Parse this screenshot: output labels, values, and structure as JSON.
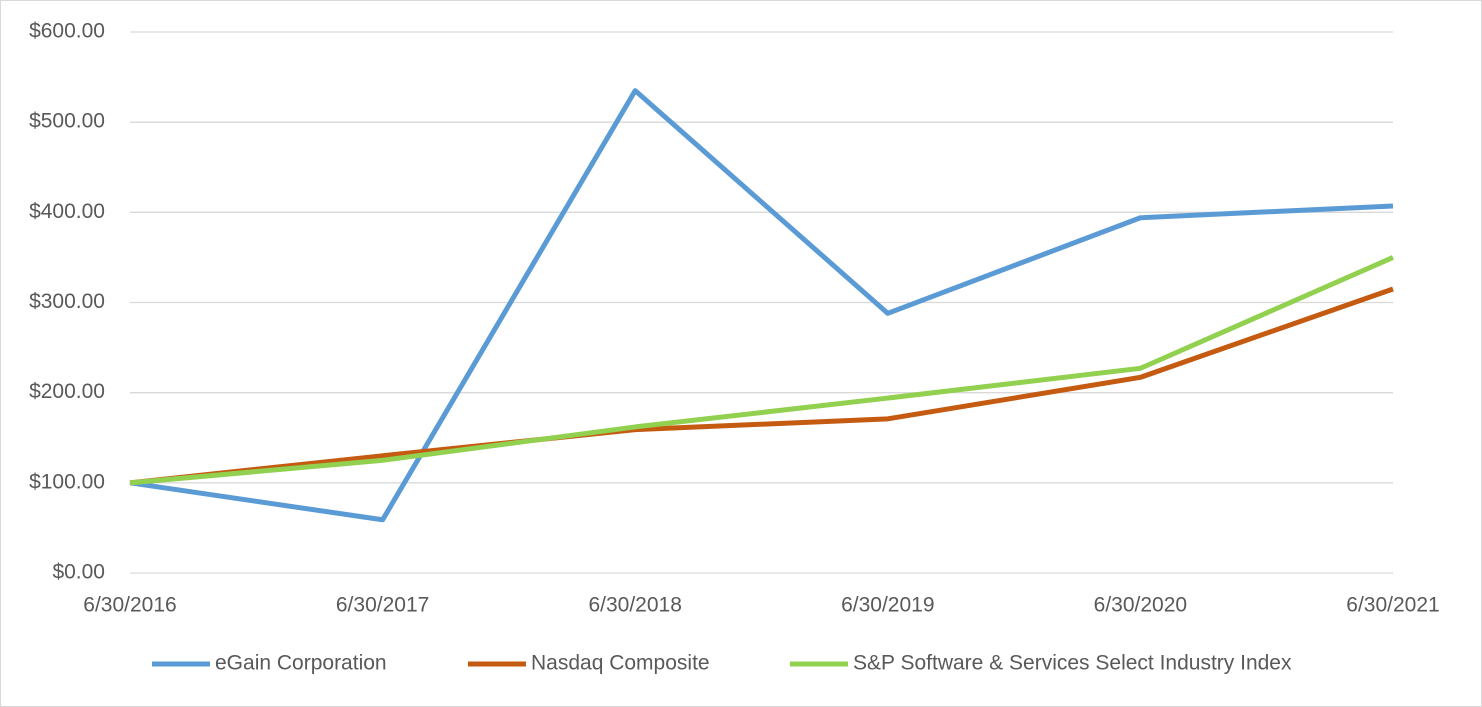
{
  "chart_data": {
    "type": "line",
    "categories": [
      "6/30/2016",
      "6/30/2017",
      "6/30/2018",
      "6/30/2019",
      "6/30/2020",
      "6/30/2021"
    ],
    "series": [
      {
        "name": "eGain Corporation",
        "color": "#5b9bd5",
        "values": [
          100,
          59,
          535,
          288,
          394,
          407
        ]
      },
      {
        "name": "Nasdaq Composite",
        "color": "#c55a11",
        "values": [
          100,
          130,
          159,
          171,
          217,
          315
        ]
      },
      {
        "name": "S&P Software & Services Select Industry Index",
        "color": "#92d050",
        "values": [
          100,
          125,
          162,
          194,
          227,
          350
        ]
      }
    ],
    "ylim": [
      0,
      600
    ],
    "yticks": [
      {
        "value": 0,
        "label": "$0.00"
      },
      {
        "value": 100,
        "label": "$100.00"
      },
      {
        "value": 200,
        "label": "$200.00"
      },
      {
        "value": 300,
        "label": "$300.00"
      },
      {
        "value": 400,
        "label": "$400.00"
      },
      {
        "value": 500,
        "label": "$500.00"
      },
      {
        "value": 600,
        "label": "$600.00"
      }
    ],
    "grid": true,
    "legend": "bottom"
  }
}
